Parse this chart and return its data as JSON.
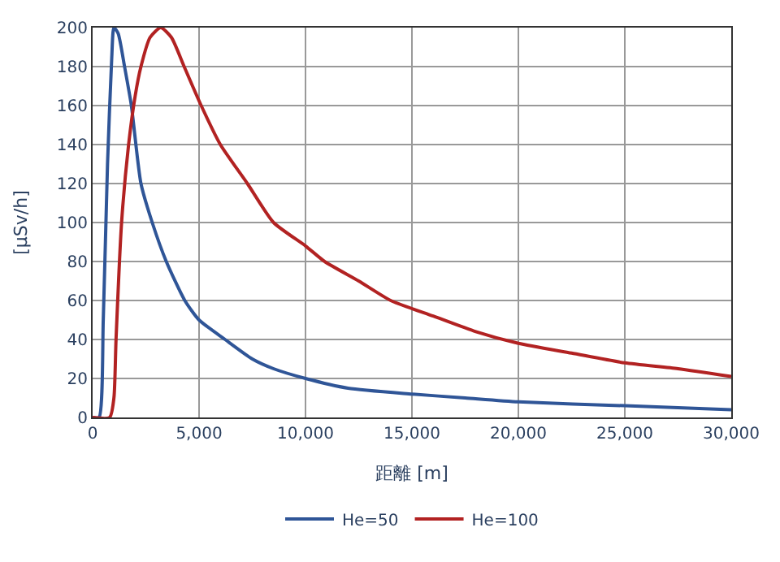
{
  "chart_data": {
    "type": "line",
    "xlabel": "距離 [m]",
    "ylabel": "[μSv/h]",
    "xlim": [
      0,
      30000
    ],
    "xticks": [
      {
        "value": 0,
        "label": "0"
      },
      {
        "value": 5000,
        "label": "5,000"
      },
      {
        "value": 10000,
        "label": "10,000"
      },
      {
        "value": 15000,
        "label": "15,000"
      },
      {
        "value": 20000,
        "label": "20,000"
      },
      {
        "value": 25000,
        "label": "25,000"
      },
      {
        "value": 30000,
        "label": "30,000"
      }
    ],
    "ylim": [
      0,
      200
    ],
    "yticks": [
      0,
      20,
      40,
      60,
      80,
      100,
      120,
      140,
      160,
      180,
      200
    ],
    "grid": true,
    "legend": "bottom",
    "marker": "none",
    "line_style": "solid",
    "series": [
      {
        "name": "He=50",
        "color": "#2f5597",
        "x": [
          0,
          300,
          500,
          700,
          900,
          1000,
          1200,
          1500,
          1820,
          2270,
          2800,
          3460,
          4330,
          5000,
          6220,
          7500,
          8500,
          10000,
          12000,
          15000,
          17500,
          20000,
          25000,
          30000
        ],
        "values": [
          0,
          0,
          50,
          130,
          185,
          200,
          197,
          180,
          160,
          120,
          100,
          80,
          60,
          50,
          40,
          30,
          25,
          20,
          15,
          12,
          10,
          8,
          6,
          4
        ]
      },
      {
        "name": "He=100",
        "color": "#b22222",
        "x": [
          0,
          800,
          1000,
          1100,
          1360,
          1690,
          2000,
          2270,
          2700,
          3200,
          3700,
          4300,
          5100,
          6000,
          7270,
          8500,
          10000,
          10900,
          12500,
          14000,
          16000,
          18000,
          20000,
          22500,
          25000,
          27500,
          30000
        ],
        "values": [
          0,
          0,
          10,
          40,
          100,
          140,
          165,
          180,
          195,
          200,
          195,
          180,
          160,
          140,
          120,
          100,
          88,
          80,
          70,
          60,
          52,
          44,
          38,
          33,
          28,
          25,
          21
        ]
      }
    ]
  }
}
